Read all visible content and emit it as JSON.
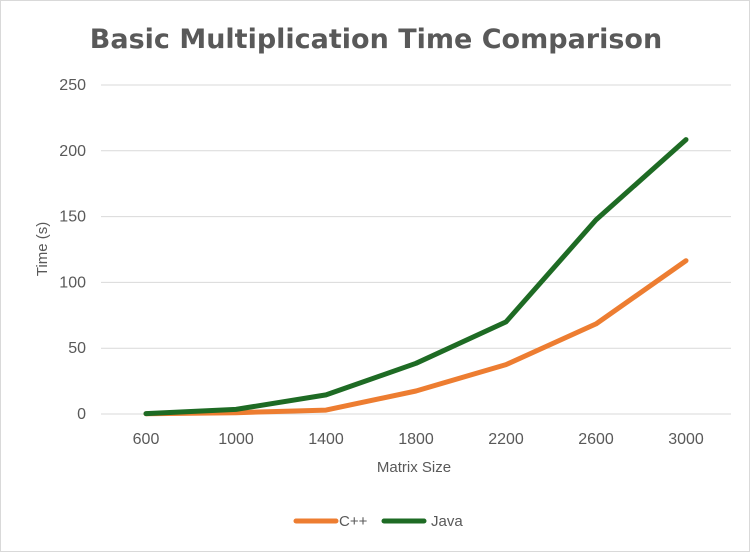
{
  "chart_data": {
    "type": "line",
    "title": "Basic Multiplication Time Comparison",
    "xlabel": "Matrix Size",
    "ylabel": "Time (s)",
    "categories": [
      "600",
      "1000",
      "1400",
      "1800",
      "2200",
      "2600",
      "3000"
    ],
    "yticks": [
      "0",
      "50",
      "100",
      "150",
      "200",
      "250"
    ],
    "ylim": [
      0,
      250
    ],
    "grid": "horizontal",
    "legend_position": "bottom",
    "series": [
      {
        "name": "C++",
        "color": "#ED7D31",
        "values": [
          0.2,
          1.0,
          3.0,
          17.5,
          37.5,
          68.5,
          116.5
        ]
      },
      {
        "name": "Java",
        "color": "#1E6B24",
        "values": [
          0.3,
          3.5,
          14.5,
          38.5,
          70.0,
          147.5,
          208.5
        ]
      }
    ]
  }
}
